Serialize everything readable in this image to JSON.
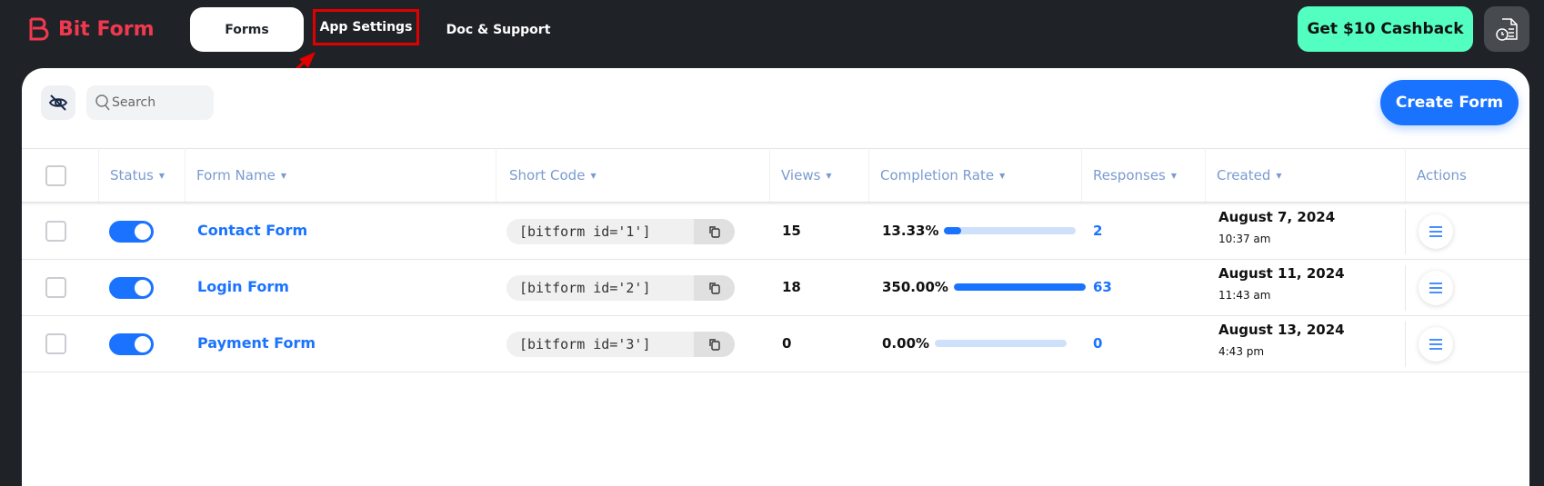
{
  "brand": {
    "name": "Bit Form"
  },
  "nav": {
    "forms": "Forms",
    "app_settings": "App Settings",
    "doc_support": "Doc & Support"
  },
  "cashback": "Get $10 Cashback",
  "toolbar": {
    "search_placeholder": "Search",
    "create_form": "Create Form"
  },
  "columns": {
    "status": "Status",
    "form_name": "Form Name",
    "short_code": "Short Code",
    "views": "Views",
    "completion_rate": "Completion Rate",
    "responses": "Responses",
    "created": "Created",
    "actions": "Actions"
  },
  "rows": [
    {
      "name": "Contact Form",
      "short_code": "[bitform id='1']",
      "views": "15",
      "completion": "13.33%",
      "completion_fill": 0.13,
      "responses": "2",
      "date": "August 7, 2024",
      "time": "10:37 am",
      "enabled": true
    },
    {
      "name": "Login Form",
      "short_code": "[bitform id='2']",
      "views": "18",
      "completion": "350.00%",
      "completion_fill": 1.0,
      "responses": "63",
      "date": "August 11, 2024",
      "time": "11:43 am",
      "enabled": true
    },
    {
      "name": "Payment Form",
      "short_code": "[bitform id='3']",
      "views": "0",
      "completion": "0.00%",
      "completion_fill": 0,
      "responses": "0",
      "date": "August 13, 2024",
      "time": "4:43 pm",
      "enabled": true
    }
  ],
  "colors": {
    "brand": "#f2384f",
    "accent": "#1a73ff",
    "cashback": "#52ffc1",
    "highlight": "#e00000"
  }
}
